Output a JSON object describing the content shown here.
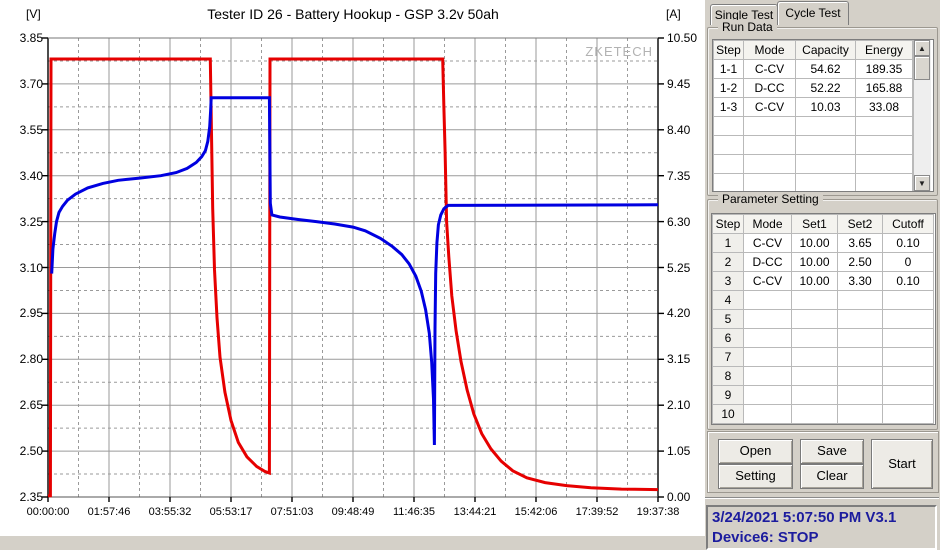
{
  "chart": {
    "title": "Tester ID 26 - Battery Hookup - GSP 3.2v 50ah",
    "unit_left": "[V]",
    "unit_right": "[A]",
    "watermark": "ZKETECH"
  },
  "chart_data": {
    "type": "line",
    "title": "Tester ID 26 - Battery Hookup - GSP 3.2v 50ah",
    "grid": true,
    "x_tick_labels": [
      "00:00:00",
      "01:57:46",
      "03:55:32",
      "05:53:17",
      "07:51:03",
      "09:48:49",
      "11:46:35",
      "13:44:21",
      "15:42:06",
      "17:39:52",
      "19:37:38"
    ],
    "left_axis": {
      "unit": "[V]",
      "min": 2.35,
      "max": 3.85,
      "ticks": [
        "3.85",
        "3.70",
        "3.55",
        "3.40",
        "3.25",
        "3.10",
        "2.95",
        "2.80",
        "2.65",
        "2.50",
        "2.35"
      ]
    },
    "right_axis": {
      "unit": "[A]",
      "min": 0.0,
      "max": 10.5,
      "ticks": [
        "10.50",
        "9.45",
        "8.40",
        "7.35",
        "6.30",
        "5.25",
        "4.20",
        "3.15",
        "2.10",
        "1.05",
        "0.00"
      ]
    },
    "series": [
      {
        "name": "Current",
        "axis": "right",
        "color": "#e60000",
        "width": 3,
        "points": [
          [
            0.0,
            0.03
          ],
          [
            0.004,
            0.03
          ],
          [
            0.005,
            10.02
          ],
          [
            0.266,
            10.02
          ],
          [
            0.268,
            8.3
          ],
          [
            0.27,
            6.6
          ],
          [
            0.273,
            5.2
          ],
          [
            0.277,
            4.1
          ],
          [
            0.282,
            3.2
          ],
          [
            0.29,
            2.4
          ],
          [
            0.3,
            1.75
          ],
          [
            0.312,
            1.25
          ],
          [
            0.326,
            0.92
          ],
          [
            0.342,
            0.7
          ],
          [
            0.356,
            0.58
          ],
          [
            0.363,
            0.55
          ],
          [
            0.364,
            10.02
          ],
          [
            0.647,
            10.02
          ],
          [
            0.649,
            8.9
          ],
          [
            0.651,
            7.9
          ],
          [
            0.6535,
            6.3
          ],
          [
            0.657,
            5.5
          ],
          [
            0.662,
            4.6
          ],
          [
            0.669,
            3.8
          ],
          [
            0.677,
            3.1
          ],
          [
            0.687,
            2.45
          ],
          [
            0.698,
            1.9
          ],
          [
            0.711,
            1.45
          ],
          [
            0.726,
            1.1
          ],
          [
            0.743,
            0.82
          ],
          [
            0.762,
            0.6
          ],
          [
            0.785,
            0.44
          ],
          [
            0.815,
            0.33
          ],
          [
            0.85,
            0.26
          ],
          [
            0.89,
            0.21
          ],
          [
            0.94,
            0.18
          ],
          [
            1.0,
            0.17
          ]
        ]
      },
      {
        "name": "Voltage",
        "axis": "left",
        "color": "#0000e0",
        "width": 3,
        "points": [
          [
            0.006,
            3.08
          ],
          [
            0.008,
            3.16
          ],
          [
            0.011,
            3.21
          ],
          [
            0.014,
            3.25
          ],
          [
            0.018,
            3.28
          ],
          [
            0.024,
            3.3
          ],
          [
            0.032,
            3.32
          ],
          [
            0.045,
            3.34
          ],
          [
            0.065,
            3.36
          ],
          [
            0.09,
            3.375
          ],
          [
            0.115,
            3.385
          ],
          [
            0.15,
            3.392
          ],
          [
            0.185,
            3.4
          ],
          [
            0.21,
            3.41
          ],
          [
            0.228,
            3.424
          ],
          [
            0.243,
            3.443
          ],
          [
            0.252,
            3.462
          ],
          [
            0.258,
            3.482
          ],
          [
            0.262,
            3.512
          ],
          [
            0.265,
            3.56
          ],
          [
            0.2665,
            3.61
          ],
          [
            0.2675,
            3.655
          ],
          [
            0.363,
            3.655
          ],
          [
            0.3645,
            3.31
          ],
          [
            0.367,
            3.272
          ],
          [
            0.38,
            3.265
          ],
          [
            0.41,
            3.257
          ],
          [
            0.44,
            3.25
          ],
          [
            0.47,
            3.242
          ],
          [
            0.5,
            3.232
          ],
          [
            0.52,
            3.22
          ],
          [
            0.545,
            3.195
          ],
          [
            0.565,
            3.168
          ],
          [
            0.58,
            3.142
          ],
          [
            0.592,
            3.112
          ],
          [
            0.603,
            3.072
          ],
          [
            0.612,
            3.022
          ],
          [
            0.619,
            2.962
          ],
          [
            0.625,
            2.885
          ],
          [
            0.629,
            2.79
          ],
          [
            0.632,
            2.67
          ],
          [
            0.6335,
            2.52
          ],
          [
            0.6345,
            2.9
          ],
          [
            0.6355,
            3.08
          ],
          [
            0.6375,
            3.18
          ],
          [
            0.64,
            3.24
          ],
          [
            0.644,
            3.272
          ],
          [
            0.649,
            3.292
          ],
          [
            0.656,
            3.303
          ],
          [
            1.0,
            3.305
          ]
        ]
      }
    ]
  },
  "panel": {
    "tabs": [
      {
        "label": "Single Test",
        "active": false
      },
      {
        "label": "Cycle Test",
        "active": true
      }
    ],
    "run_data": {
      "title": "Run Data",
      "headers": [
        "Step",
        "Mode",
        "Capacity",
        "Energy"
      ],
      "rows": [
        [
          "1-1",
          "C-CV",
          "54.62",
          "189.35"
        ],
        [
          "1-2",
          "D-CC",
          "52.22",
          "165.88"
        ],
        [
          "1-3",
          "C-CV",
          "10.03",
          "33.08"
        ]
      ],
      "empty_rows": 5
    },
    "parameter_setting": {
      "title": "Parameter Setting",
      "headers": [
        "Step",
        "Mode",
        "Set1",
        "Set2",
        "Cutoff"
      ],
      "rows": [
        [
          "1",
          "C-CV",
          "10.00",
          "3.65",
          "0.10"
        ],
        [
          "2",
          "D-CC",
          "10.00",
          "2.50",
          "0"
        ],
        [
          "3",
          "C-CV",
          "10.00",
          "3.30",
          "0.10"
        ],
        [
          "4",
          "",
          "",
          "",
          ""
        ],
        [
          "5",
          "",
          "",
          "",
          ""
        ],
        [
          "6",
          "",
          "",
          "",
          ""
        ],
        [
          "7",
          "",
          "",
          "",
          ""
        ],
        [
          "8",
          "",
          "",
          "",
          ""
        ],
        [
          "9",
          "",
          "",
          "",
          ""
        ],
        [
          "10",
          "",
          "",
          "",
          ""
        ]
      ]
    },
    "buttons": {
      "open": "Open",
      "save": "Save",
      "setting": "Setting",
      "clear": "Clear",
      "start": "Start"
    },
    "icons": {
      "arrow_up": "▲",
      "arrow_down": "▼"
    },
    "status": {
      "line1": "3/24/2021 5:07:50 PM  V3.1",
      "line2": "Device6: STOP"
    }
  }
}
